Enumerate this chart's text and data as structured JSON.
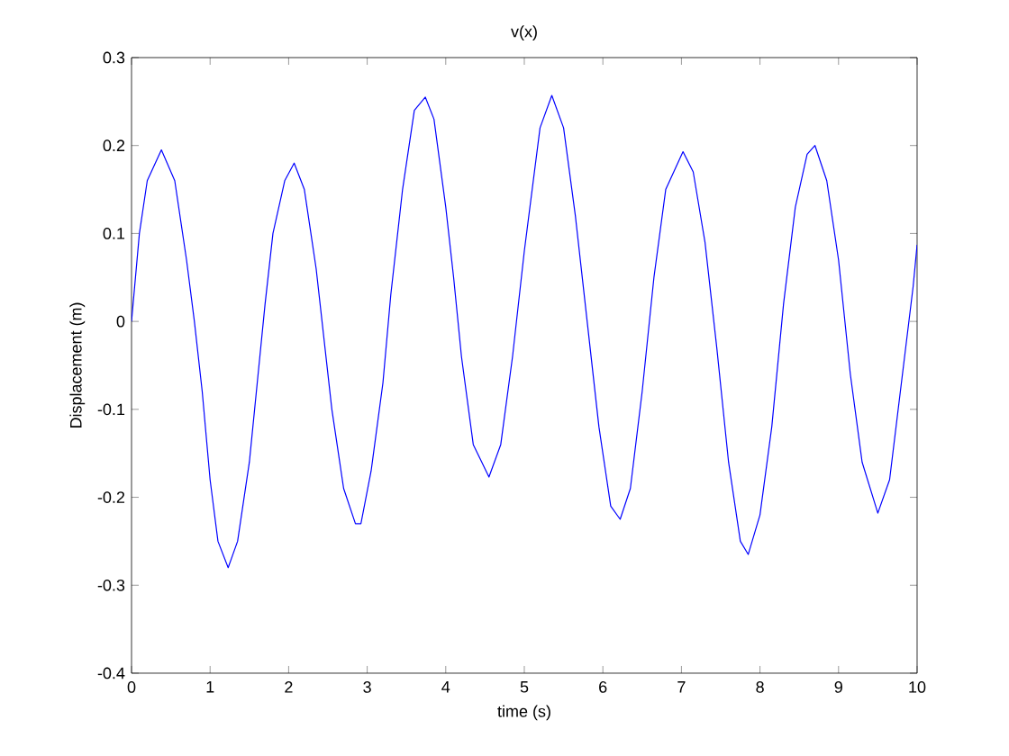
{
  "chart_data": {
    "type": "line",
    "title": "v(x)",
    "xlabel": "time (s)",
    "ylabel": "Displacement (m)",
    "xlim": [
      0,
      10
    ],
    "ylim": [
      -0.4,
      0.3
    ],
    "xticks": [
      0,
      1,
      2,
      3,
      4,
      5,
      6,
      7,
      8,
      9,
      10
    ],
    "yticks": [
      -0.4,
      -0.3,
      -0.2,
      -0.1,
      0,
      0.1,
      0.2,
      0.3
    ],
    "grid": false,
    "legend": false,
    "marker": "none",
    "line_style": "solid",
    "series": [
      {
        "color": "#0000ff",
        "x": [
          0,
          0.1,
          0.2,
          0.38,
          0.55,
          0.7,
          0.8,
          0.9,
          1.0,
          1.1,
          1.23,
          1.35,
          1.5,
          1.6,
          1.7,
          1.8,
          1.95,
          2.07,
          2.2,
          2.35,
          2.45,
          2.55,
          2.7,
          2.85,
          2.92,
          3.05,
          3.2,
          3.3,
          3.45,
          3.6,
          3.74,
          3.85,
          4.0,
          4.1,
          4.2,
          4.35,
          4.55,
          4.7,
          4.85,
          5.0,
          5.2,
          5.35,
          5.5,
          5.65,
          5.8,
          5.95,
          6.1,
          6.22,
          6.35,
          6.5,
          6.65,
          6.8,
          7.02,
          7.15,
          7.3,
          7.45,
          7.6,
          7.75,
          7.85,
          8.0,
          8.15,
          8.3,
          8.45,
          8.6,
          8.7,
          8.85,
          9.0,
          9.15,
          9.3,
          9.5,
          9.65,
          9.8,
          9.95,
          10
        ],
        "values": [
          0.0,
          0.1,
          0.16,
          0.195,
          0.16,
          0.07,
          0.0,
          -0.08,
          -0.18,
          -0.25,
          -0.28,
          -0.25,
          -0.16,
          -0.07,
          0.02,
          0.1,
          0.16,
          0.18,
          0.15,
          0.06,
          -0.02,
          -0.1,
          -0.19,
          -0.23,
          -0.23,
          -0.17,
          -0.07,
          0.03,
          0.15,
          0.24,
          0.255,
          0.23,
          0.13,
          0.05,
          -0.04,
          -0.14,
          -0.177,
          -0.14,
          -0.04,
          0.08,
          0.22,
          0.257,
          0.22,
          0.12,
          0.0,
          -0.12,
          -0.21,
          -0.225,
          -0.19,
          -0.08,
          0.05,
          0.15,
          0.193,
          0.17,
          0.09,
          -0.03,
          -0.16,
          -0.25,
          -0.265,
          -0.22,
          -0.12,
          0.02,
          0.13,
          0.19,
          0.2,
          0.16,
          0.07,
          -0.06,
          -0.16,
          -0.218,
          -0.18,
          -0.07,
          0.04,
          0.087
        ]
      }
    ]
  }
}
